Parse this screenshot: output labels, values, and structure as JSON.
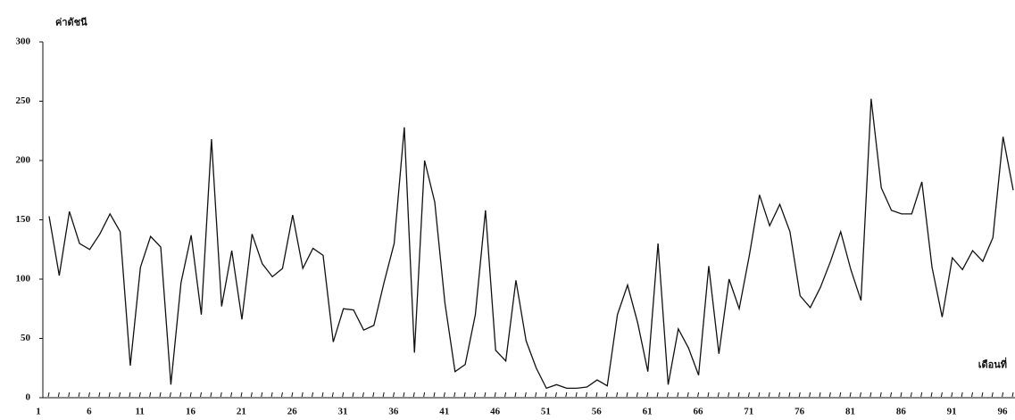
{
  "chart_data": {
    "type": "line",
    "y_label": "ค่าดัชนี",
    "x_label": "เดือนที่",
    "x": [
      1,
      2,
      3,
      4,
      5,
      6,
      7,
      8,
      9,
      10,
      11,
      12,
      13,
      14,
      15,
      16,
      17,
      18,
      19,
      20,
      21,
      22,
      23,
      24,
      25,
      26,
      27,
      28,
      29,
      30,
      31,
      32,
      33,
      34,
      35,
      36,
      37,
      38,
      39,
      40,
      41,
      42,
      43,
      44,
      45,
      46,
      47,
      48,
      49,
      50,
      51,
      52,
      53,
      54,
      55,
      56,
      57,
      58,
      59,
      60,
      61,
      62,
      63,
      64,
      65,
      66,
      67,
      68,
      69,
      70,
      71,
      72,
      73,
      74,
      75,
      76,
      77,
      78,
      79,
      80,
      81,
      82,
      83,
      84,
      85,
      86,
      87,
      88,
      89,
      90,
      91,
      92,
      93,
      94,
      95,
      96
    ],
    "series": [
      {
        "color": "#111111",
        "values": [
          153,
          103,
          157,
          130,
          125,
          138,
          155,
          140,
          27,
          110,
          136,
          127,
          11,
          97,
          137,
          70,
          218,
          77,
          124,
          66,
          138,
          113,
          102,
          109,
          154,
          109,
          126,
          120,
          47,
          75,
          74,
          57,
          61,
          97,
          130,
          228,
          38,
          200,
          165,
          80,
          22,
          28,
          70,
          158,
          40,
          31,
          99,
          48,
          25,
          8,
          11,
          8,
          8,
          9,
          15,
          10,
          70,
          95,
          63,
          22,
          130,
          11,
          58,
          42,
          19,
          111,
          37,
          100,
          75,
          120,
          171,
          145,
          163,
          140,
          86,
          76,
          93,
          115,
          140,
          108,
          82,
          252,
          177,
          158,
          155,
          155,
          182,
          110,
          68,
          118,
          108,
          124,
          115,
          135,
          220,
          175
        ]
      }
    ],
    "xlim": [
      1,
      96
    ],
    "xticks": [
      1,
      6,
      11,
      16,
      21,
      26,
      31,
      36,
      41,
      46,
      51,
      56,
      61,
      66,
      71,
      76,
      81,
      86,
      91,
      96
    ],
    "ylim": [
      0,
      300
    ],
    "yticks": [
      0,
      50,
      100,
      150,
      200,
      250,
      300
    ]
  }
}
